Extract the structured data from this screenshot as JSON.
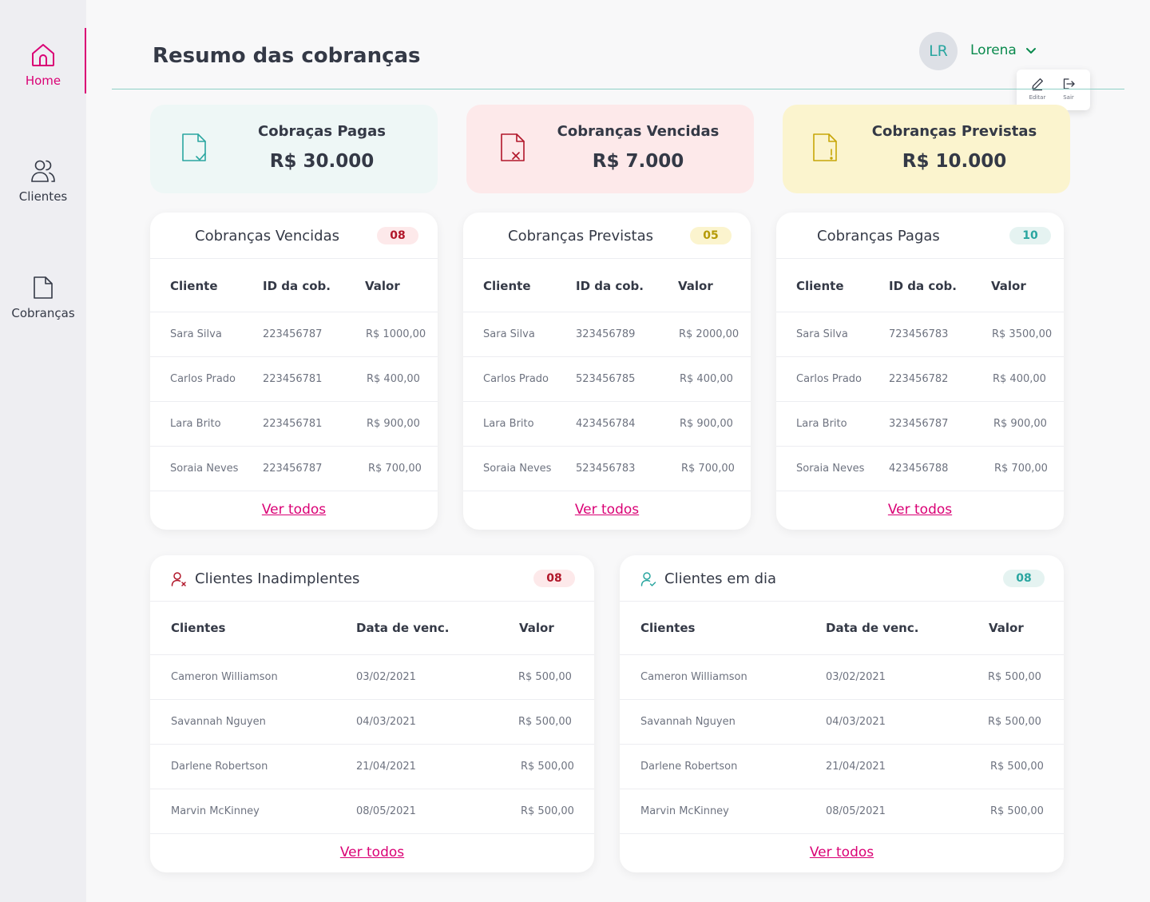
{
  "nav": {
    "home": "Home",
    "clients": "Clientes",
    "billing": "Cobranças"
  },
  "header": {
    "title": "Resumo das cobranças",
    "avatar_initials": "LR",
    "user_name": "Lorena",
    "menu": {
      "edit": "Editar",
      "logout": "Sair"
    }
  },
  "colors": {
    "accent": "#DA0175",
    "paid_bg": "#EEF7F6",
    "overdue_bg": "#FDE9EA",
    "forecast_bg": "#FBF4CE",
    "teal": "#2AA6A0",
    "red": "#B1172A",
    "yellow": "#C7A608"
  },
  "summary": [
    {
      "title": "Cobraças Pagas",
      "value": "R$ 30.000"
    },
    {
      "title": "Cobranças Vencidas",
      "value": "R$ 7.000"
    },
    {
      "title": "Cobranças Previstas",
      "value": "R$ 10.000"
    }
  ],
  "billing_tables": [
    {
      "title": "Cobranças Vencidas",
      "badge": "08",
      "columns": [
        "Cliente",
        "ID da cob.",
        "Valor"
      ],
      "rows": [
        [
          "Sara Silva",
          "223456787",
          "R$ 1000,00"
        ],
        [
          "Carlos Prado",
          "223456781",
          "R$ 400,00"
        ],
        [
          "Lara Brito",
          "223456781",
          "R$ 900,00"
        ],
        [
          "Soraia Neves",
          "223456787",
          "R$ 700,00"
        ]
      ],
      "see_all": "Ver todos"
    },
    {
      "title": "Cobranças Previstas",
      "badge": "05",
      "columns": [
        "Cliente",
        "ID da cob.",
        "Valor"
      ],
      "rows": [
        [
          "Sara Silva",
          "323456789",
          "R$ 2000,00"
        ],
        [
          "Carlos Prado",
          "523456785",
          "R$ 400,00"
        ],
        [
          "Lara Brito",
          "423456784",
          "R$ 900,00"
        ],
        [
          "Soraia Neves",
          "523456783",
          "R$ 700,00"
        ]
      ],
      "see_all": "Ver todos"
    },
    {
      "title": "Cobranças Pagas",
      "badge": "10",
      "columns": [
        "Cliente",
        "ID da cob.",
        "Valor"
      ],
      "rows": [
        [
          "Sara Silva",
          "723456783",
          "R$ 3500,00"
        ],
        [
          "Carlos Prado",
          "223456782",
          "R$ 400,00"
        ],
        [
          "Lara Brito",
          "323456787",
          "R$ 900,00"
        ],
        [
          "Soraia Neves",
          "423456788",
          "R$ 700,00"
        ]
      ],
      "see_all": "Ver todos"
    }
  ],
  "client_tables": [
    {
      "title": "Clientes Inadimplentes",
      "badge": "08",
      "columns": [
        "Clientes",
        "Data de venc.",
        "Valor"
      ],
      "rows": [
        [
          "Cameron Williamson",
          "03/02/2021",
          "R$ 500,00"
        ],
        [
          "Savannah Nguyen",
          "04/03/2021",
          "R$ 500,00"
        ],
        [
          "Darlene Robertson",
          "21/04/2021",
          "R$ 500,00"
        ],
        [
          "Marvin McKinney",
          "08/05/2021",
          "R$ 500,00"
        ]
      ],
      "see_all": "Ver todos"
    },
    {
      "title": "Clientes em dia",
      "badge": "08",
      "columns": [
        "Clientes",
        "Data de venc.",
        "Valor"
      ],
      "rows": [
        [
          "Cameron Williamson",
          "03/02/2021",
          "R$ 500,00"
        ],
        [
          "Savannah Nguyen",
          "04/03/2021",
          "R$ 500,00"
        ],
        [
          "Darlene Robertson",
          "21/04/2021",
          "R$ 500,00"
        ],
        [
          "Marvin McKinney",
          "08/05/2021",
          "R$ 500,00"
        ]
      ],
      "see_all": "Ver todos"
    }
  ]
}
